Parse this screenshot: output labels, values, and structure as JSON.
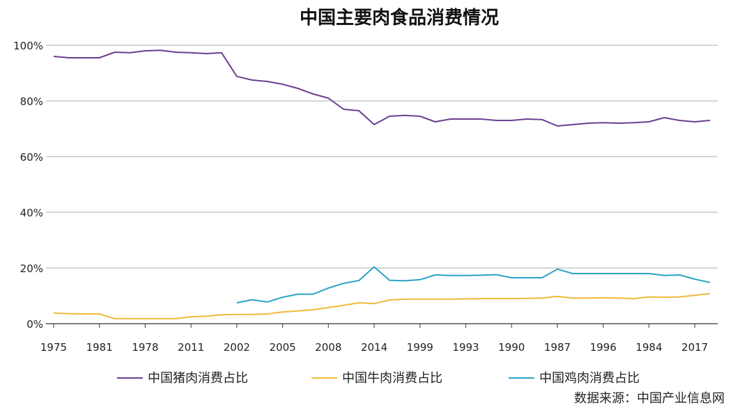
{
  "chart_data": {
    "type": "line",
    "title": "中国主要肉食品消费情况",
    "source": "数据来源：中国产业信息网",
    "xlabel": "",
    "ylabel": "",
    "ylim": [
      0,
      100
    ],
    "y_ticks": [
      "0%",
      "20%",
      "40%",
      "60%",
      "80%",
      "100%"
    ],
    "y_tick_values": [
      0,
      20,
      40,
      60,
      80,
      100
    ],
    "grid": true,
    "legend_position": "bottom",
    "x_tick_labels": [
      "1975",
      "1981",
      "1978",
      "2011",
      "2002",
      "2005",
      "2008",
      "2014",
      "1999",
      "1993",
      "1990",
      "1987",
      "1996",
      "1984",
      "2017"
    ],
    "x_tick_positions": [
      0,
      3,
      6,
      9,
      12,
      15,
      18,
      21,
      24,
      27,
      30,
      33,
      36,
      39,
      42
    ],
    "x_range": [
      -0.5,
      43.5
    ],
    "colors": {
      "pork": "#6b3f8f",
      "beef": "#f0b93a",
      "chicken": "#2aa3c6",
      "grid": "#bdbdbd",
      "axis": "#555555"
    },
    "series": [
      {
        "name": "中国猪肉消费占比",
        "color": "#6b3f8f",
        "x": [
          0,
          1,
          2,
          3,
          4,
          5,
          6,
          7,
          8,
          9,
          10,
          11,
          12,
          13,
          14,
          15,
          16,
          17,
          18,
          19,
          20,
          21,
          22,
          23,
          24,
          25,
          26,
          27,
          28,
          29,
          30,
          31,
          32,
          33,
          34,
          35,
          36,
          37,
          38,
          39,
          40,
          41,
          42,
          43
        ],
        "values": [
          96,
          95.5,
          95.5,
          95.5,
          97.5,
          97.3,
          98,
          98.2,
          97.5,
          97.3,
          97,
          97.3,
          88.8,
          87.5,
          87,
          86,
          84.5,
          82.5,
          81,
          77,
          76.5,
          71.5,
          74.5,
          74.8,
          74.5,
          72.5,
          73.5,
          73.5,
          73.5,
          73,
          73,
          73.5,
          73.3,
          71,
          71.5,
          72,
          72.2,
          72,
          72.2,
          72.5,
          74,
          73,
          72.5,
          73
        ]
      },
      {
        "name": "中国牛肉消费占比",
        "color": "#f0b93a",
        "x": [
          0,
          1,
          2,
          3,
          4,
          5,
          6,
          7,
          8,
          9,
          10,
          11,
          12,
          13,
          14,
          15,
          16,
          17,
          18,
          19,
          20,
          21,
          22,
          23,
          24,
          25,
          26,
          27,
          28,
          29,
          30,
          31,
          32,
          33,
          34,
          35,
          36,
          37,
          38,
          39,
          40,
          41,
          42,
          43
        ],
        "values": [
          3.8,
          3.6,
          3.5,
          3.5,
          1.8,
          1.8,
          1.8,
          1.8,
          1.8,
          2.5,
          2.7,
          3.2,
          3.3,
          3.3,
          3.5,
          4.2,
          4.6,
          5,
          5.8,
          6.6,
          7.5,
          7.2,
          8.5,
          8.8,
          8.8,
          8.8,
          8.8,
          8.9,
          9,
          9,
          9,
          9.1,
          9.2,
          9.8,
          9.2,
          9.2,
          9.3,
          9.2,
          9,
          9.6,
          9.5,
          9.6,
          10.2,
          10.8
        ]
      },
      {
        "name": "中国鸡肉消费占比",
        "color": "#2aa3c6",
        "x": [
          12,
          13,
          14,
          15,
          16,
          17,
          18,
          19,
          20,
          21,
          22,
          23,
          24,
          25,
          26,
          27,
          28,
          29,
          30,
          31,
          32,
          33,
          34,
          35,
          36,
          37,
          38,
          39,
          40,
          41,
          42,
          43
        ],
        "values": [
          7.5,
          8.6,
          7.8,
          9.5,
          10.6,
          10.6,
          12.8,
          14.5,
          15.5,
          20.4,
          15.6,
          15.4,
          15.8,
          17.5,
          17.3,
          17.3,
          17.4,
          17.6,
          16.5,
          16.5,
          16.5,
          19.6,
          18,
          18,
          18,
          18,
          18,
          18,
          17.3,
          17.5,
          16,
          14.8
        ]
      }
    ]
  }
}
